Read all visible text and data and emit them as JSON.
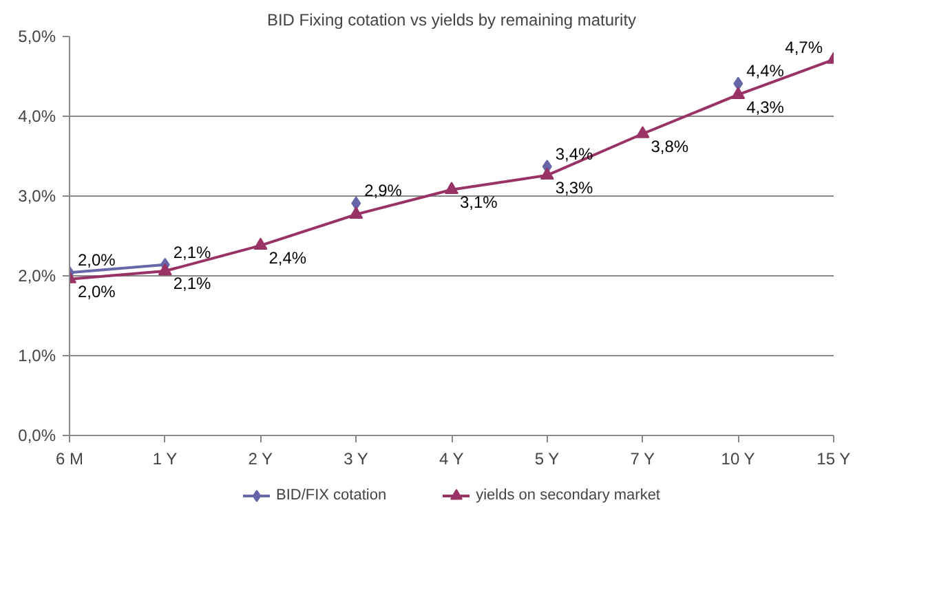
{
  "chart_data": {
    "type": "line",
    "title": "BID Fixing cotation vs yields by remaining maturity",
    "categories": [
      "6 M",
      "1 Y",
      "2 Y",
      "3 Y",
      "4 Y",
      "5 Y",
      "7 Y",
      "10 Y",
      "15 Y"
    ],
    "series": [
      {
        "name": "BID/FIX cotation",
        "color": "#6666a8",
        "marker": "diamond",
        "values": [
          2.04,
          2.14,
          null,
          2.91,
          null,
          3.37,
          null,
          4.41,
          null
        ],
        "value_labels": [
          "2,0%",
          "2,1%",
          null,
          "2,9%",
          null,
          "3,4%",
          null,
          "4,4%",
          null
        ]
      },
      {
        "name": "yields on secondary market",
        "color": "#993366",
        "marker": "triangle",
        "values": [
          1.96,
          2.06,
          2.38,
          2.77,
          3.08,
          3.26,
          3.78,
          4.27,
          4.71
        ],
        "value_labels": [
          "2,0%",
          "2,1%",
          "2,4%",
          null,
          "3,1%",
          "3,3%",
          "3,8%",
          "4,3%",
          "4,7%"
        ]
      }
    ],
    "ylim": [
      0,
      5
    ],
    "yticks": [
      {
        "value": 0,
        "label": "0,0%"
      },
      {
        "value": 1,
        "label": "1,0%"
      },
      {
        "value": 2,
        "label": "2,0%"
      },
      {
        "value": 3,
        "label": "3,0%"
      },
      {
        "value": 4,
        "label": "4,0%"
      },
      {
        "value": 5,
        "label": "5,0%"
      }
    ],
    "grid": "y",
    "legend": "bottom",
    "line_style": "solid"
  }
}
